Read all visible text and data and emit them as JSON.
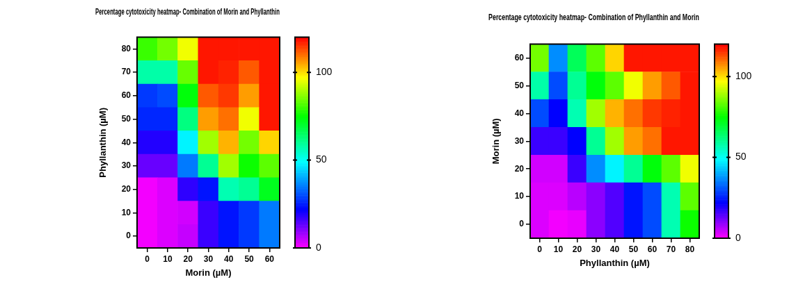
{
  "chart_data": [
    {
      "type": "heatmap",
      "title": "Percentage cytotoxicity heatmap- Combination of Morin and Phyllanthin",
      "xlabel": "Morin (µM)",
      "ylabel": "Phyllanthin (µM)",
      "categories": [
        "0",
        "10",
        "20",
        "30",
        "40",
        "50",
        "60"
      ],
      "y_categories": [
        "80",
        "70",
        "60",
        "50",
        "40",
        "30",
        "20",
        "10",
        "0"
      ],
      "cells": [
        [
          80,
          85,
          96,
          118,
          118,
          118,
          118
        ],
        [
          58,
          58,
          84,
          118,
          117,
          112,
          118
        ],
        [
          28,
          30,
          74,
          112,
          115,
          106,
          118
        ],
        [
          26,
          26,
          62,
          106,
          110,
          96,
          118
        ],
        [
          19,
          19,
          48,
          89,
          104,
          85,
          101
        ],
        [
          13,
          13,
          35,
          60,
          89,
          76,
          83
        ],
        [
          1,
          3,
          18,
          24,
          57,
          60,
          72
        ],
        [
          1,
          3,
          4,
          17,
          24,
          28,
          35
        ],
        [
          1,
          3,
          5,
          17,
          24,
          28,
          35
        ]
      ],
      "clim": [
        0,
        120
      ],
      "cticks": [
        0,
        50,
        100
      ]
    },
    {
      "type": "heatmap",
      "title": "Percentage cytotoxicity heatmap- Combination of Phyllanthin and Morin",
      "xlabel": "Phyllanthin (µM)",
      "ylabel": "Morin (µM)",
      "categories": [
        "0",
        "10",
        "20",
        "30",
        "40",
        "50",
        "60",
        "70",
        "80"
      ],
      "y_categories": [
        "60",
        "50",
        "40",
        "30",
        "20",
        "10",
        "0"
      ],
      "cells": [
        [
          85,
          37,
          66,
          83,
          101,
          118,
          118,
          118,
          118
        ],
        [
          58,
          30,
          60,
          74,
          83,
          96,
          106,
          112,
          118
        ],
        [
          30,
          22,
          57,
          89,
          104,
          110,
          115,
          117,
          118
        ],
        [
          17,
          17,
          22,
          60,
          89,
          106,
          110,
          118,
          118
        ],
        [
          4,
          4,
          17,
          37,
          48,
          60,
          74,
          83,
          96
        ],
        [
          3,
          3,
          6,
          10,
          15,
          24,
          30,
          57,
          83
        ],
        [
          3,
          1,
          2,
          10,
          15,
          24,
          30,
          57,
          76
        ]
      ],
      "clim": [
        0,
        120
      ],
      "cticks": [
        0,
        50,
        100
      ]
    }
  ]
}
